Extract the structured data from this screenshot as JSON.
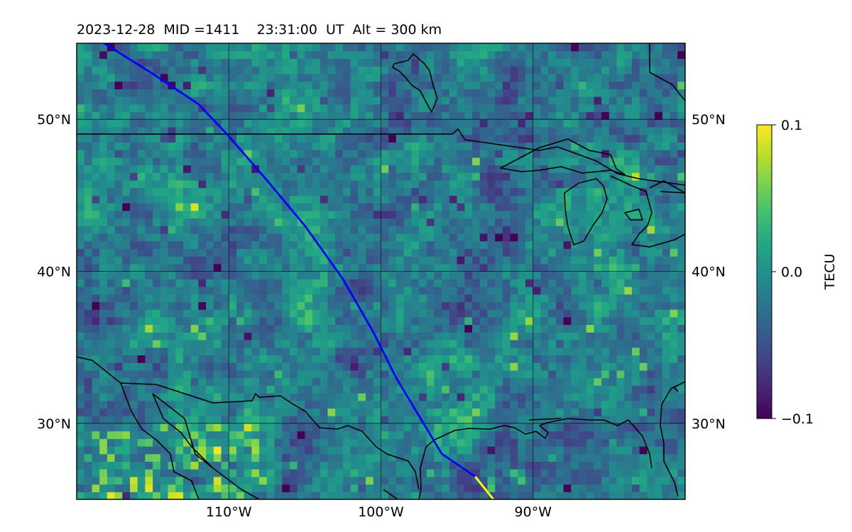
{
  "title": "2023-12-28  MID =1411    23:31:00  UT  Alt = 300 km",
  "chart_data": {
    "type": "heatmap",
    "title": "2023-12-28  MID =1411    23:31:00  UT  Alt = 300 km",
    "projection": "plate carree map",
    "lon_range": [
      -120,
      -80
    ],
    "lat_range": [
      25,
      55
    ],
    "x_ticks": [
      {
        "value": -110,
        "label": "110°W"
      },
      {
        "value": -100,
        "label": "100°W"
      },
      {
        "value": -90,
        "label": "90°W"
      }
    ],
    "y_ticks": [
      {
        "value": 30,
        "label": "30°N"
      },
      {
        "value": 40,
        "label": "40°N"
      },
      {
        "value": 50,
        "label": "50°N"
      }
    ],
    "y_ticks_on_both_sides": true,
    "grid": true,
    "colorbar": {
      "label": "TECU",
      "colormap": "viridis",
      "min": -0.1,
      "max": 0.1,
      "ticks": [
        {
          "value": 0.1,
          "label": "0.1"
        },
        {
          "value": 0.0,
          "label": "0.0"
        },
        {
          "value": -0.1,
          "label": "−0.1"
        }
      ]
    },
    "field_description": "mostly near 0 TECU with small-scale noise; lower values over the north and north-east, higher patches along the southern edge",
    "field_grid": {
      "lon_step": 0.5,
      "lat_step": 0.5
    },
    "satellite_track": {
      "color": "#0000ff",
      "end_color": "#ffff00",
      "points": [
        [
          -118.2,
          55
        ],
        [
          -115,
          53
        ],
        [
          -112,
          51
        ],
        [
          -110.1,
          49
        ],
        [
          -107.5,
          46
        ],
        [
          -105,
          43
        ],
        [
          -102.5,
          39.5
        ],
        [
          -100.5,
          36
        ],
        [
          -99,
          33
        ],
        [
          -97.5,
          30.5
        ],
        [
          -96,
          28
        ],
        [
          -93.8,
          26.5
        ],
        [
          -92.6,
          25
        ]
      ]
    },
    "coastlines_and_borders": true
  }
}
